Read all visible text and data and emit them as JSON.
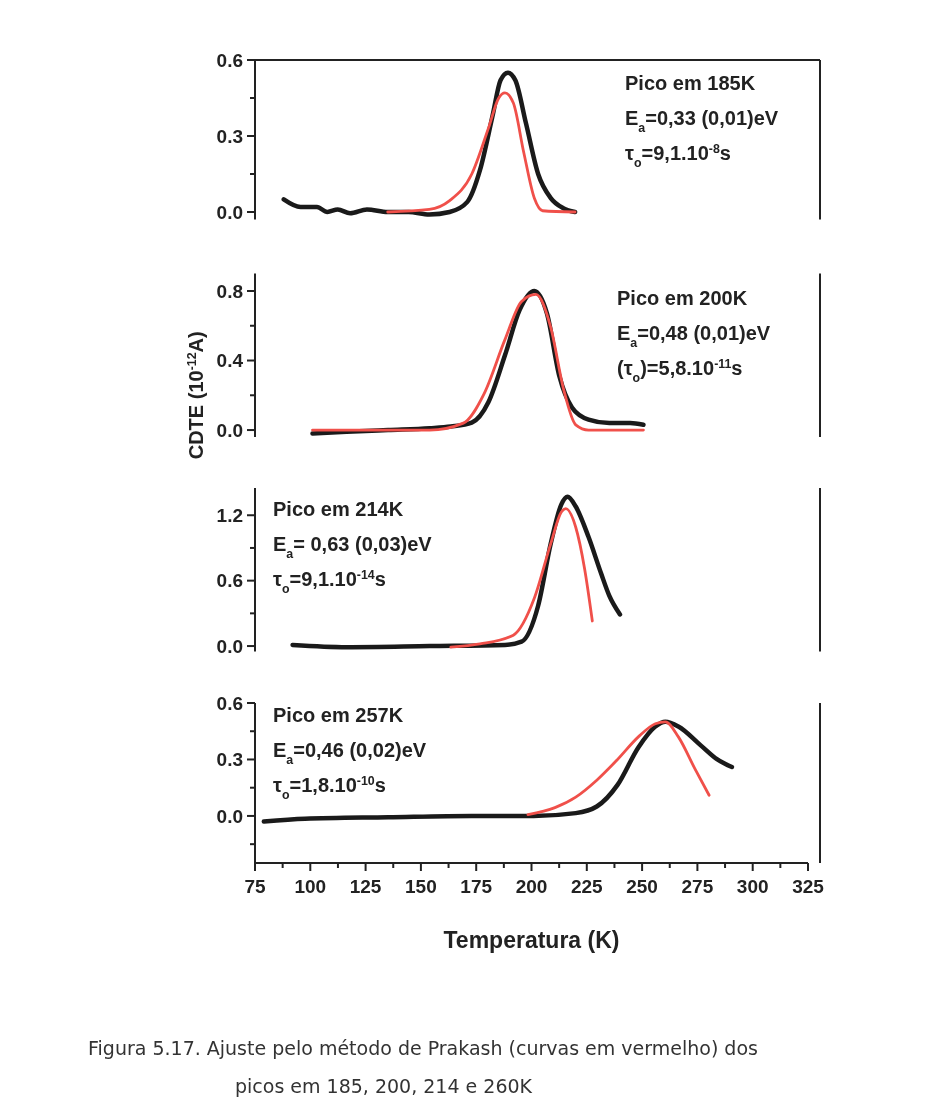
{
  "chart_data": [
    {
      "type": "line",
      "xlim": [
        75,
        325
      ],
      "ylim": [
        -0.03,
        0.6
      ],
      "yticks": [
        {
          "value": 0,
          "label": "0.0"
        },
        {
          "value": 0.15,
          "label": null
        },
        {
          "value": 0.3,
          "label": "0.3"
        },
        {
          "value": 0.45,
          "label": null
        },
        {
          "value": 0.6,
          "label": "0.6"
        }
      ],
      "tick_labels": "y",
      "annotations": [
        "Pico em 185K",
        "E$_{a}$=0,33 (0,01)eV",
        "τ$_{o}$=9,1.10$^{-8}$s"
      ],
      "series": [
        {
          "color": "#1a1a1a",
          "x": [
            88,
            95.6,
            103,
            107.7,
            112.4,
            118,
            125.6,
            135,
            144.4,
            153.8,
            163,
            171,
            176.7,
            182.4,
            186,
            189.3,
            192.7,
            197.5,
            203,
            208.7,
            214.4,
            219.7
          ],
          "values": [
            0.05,
            0.02,
            0.02,
            0.0,
            0.01,
            -0.005,
            0.01,
            0.0,
            0.0,
            -0.01,
            0.0,
            0.04,
            0.165,
            0.38,
            0.52,
            0.55,
            0.52,
            0.35,
            0.15,
            0.055,
            0.015,
            0.0
          ]
        },
        {
          "color": "#f0504a",
          "x": [
            135,
            153.8,
            163,
            173,
            180.5,
            185.2,
            188,
            191.8,
            196.5,
            201.3,
            205,
            219.7
          ],
          "values": [
            0.0,
            0.01,
            0.045,
            0.15,
            0.33,
            0.45,
            0.47,
            0.43,
            0.235,
            0.054,
            0.005,
            0.0
          ]
        }
      ]
    },
    {
      "type": "line",
      "ylabel": "CDTE (10$^{-12}$A)",
      "xlim": [
        75,
        325
      ],
      "ylim": [
        -0.04,
        0.9
      ],
      "yticks": [
        {
          "value": 0,
          "label": "0.0"
        },
        {
          "value": 0.2,
          "label": null
        },
        {
          "value": 0.4,
          "label": "0.4"
        },
        {
          "value": 0.6,
          "label": null
        },
        {
          "value": 0.8,
          "label": "0.8"
        }
      ],
      "tick_labels": "y",
      "annotations": [
        "Pico em 200K",
        "E$_{a}$=0,48 (0,01)eV",
        "(τ$_{o}$)=5,8.10$^{-11}$s"
      ],
      "series": [
        {
          "color": "#1a1a1a",
          "x": [
            101,
            116.4,
            135.2,
            154,
            163.5,
            173,
            180.5,
            188,
            194.6,
            201.3,
            207,
            212.6,
            218.3,
            225.8,
            235.2,
            244.6,
            250.6
          ],
          "values": [
            -0.02,
            -0.01,
            0.0,
            0.01,
            0.02,
            0.043,
            0.16,
            0.43,
            0.69,
            0.8,
            0.67,
            0.31,
            0.13,
            0.06,
            0.04,
            0.04,
            0.03
          ]
        },
        {
          "color": "#f0504a",
          "x": [
            101,
            154,
            169.2,
            178.6,
            188,
            195.5,
            202,
            208.7,
            214.4,
            220,
            225.8,
            250.6
          ],
          "values": [
            0.0,
            0.0,
            0.04,
            0.21,
            0.52,
            0.74,
            0.78,
            0.59,
            0.24,
            0.03,
            0.0,
            0.0
          ]
        }
      ]
    },
    {
      "type": "line",
      "xlim": [
        75,
        325
      ],
      "ylim": [
        -0.05,
        1.45
      ],
      "yticks": [
        {
          "value": 0,
          "label": "0.0"
        },
        {
          "value": 0.3,
          "label": null
        },
        {
          "value": 0.6,
          "label": "0.6"
        },
        {
          "value": 0.9,
          "label": null
        },
        {
          "value": 1.2,
          "label": "1.2"
        }
      ],
      "tick_labels": "y",
      "annotations": [
        "Pico em 214K",
        "E$_{a}$= 0,63 (0,03)eV",
        "τ$_{o}$=9,1.10$^{-14}$s"
      ],
      "series": [
        {
          "color": "#1a1a1a",
          "x": [
            92,
            116.4,
            154,
            188,
            195.5,
            203,
            208.7,
            213.5,
            216.3,
            220,
            225.8,
            231.4,
            235.2,
            240
          ],
          "values": [
            0.01,
            -0.01,
            0.0,
            0.01,
            0.04,
            0.37,
            0.94,
            1.3,
            1.37,
            1.28,
            1.0,
            0.67,
            0.46,
            0.29
          ]
        },
        {
          "color": "#f0504a",
          "x": [
            163.5,
            176.7,
            191.8,
            201.3,
            208.7,
            213.5,
            215.5,
            220,
            224,
            227.5
          ],
          "values": [
            -0.01,
            0.02,
            0.1,
            0.44,
            0.94,
            1.23,
            1.26,
            1.09,
            0.71,
            0.23
          ]
        }
      ]
    },
    {
      "type": "line",
      "xlabel": "Temperatura (K)",
      "xlim": [
        75,
        325
      ],
      "xticks": [
        75,
        {
          "value": 87.5,
          "label": null
        },
        100,
        {
          "value": 112.5,
          "label": null
        },
        125,
        {
          "value": 137.5,
          "label": null
        },
        150,
        {
          "value": 162.5,
          "label": null
        },
        175,
        {
          "value": 187.5,
          "label": null
        },
        200,
        {
          "value": 212.5,
          "label": null
        },
        225,
        {
          "value": 237.5,
          "label": null
        },
        250,
        {
          "value": 262.5,
          "label": null
        },
        275,
        {
          "value": 287.5,
          "label": null
        },
        300,
        {
          "value": 312.5,
          "label": null
        },
        325
      ],
      "ylim": [
        -0.25,
        0.6
      ],
      "yticks": [
        {
          "value": -0.15,
          "label": null
        },
        {
          "value": 0,
          "label": "0.0"
        },
        {
          "value": 0.15,
          "label": null
        },
        {
          "value": 0.3,
          "label": "0.3"
        },
        {
          "value": 0.45,
          "label": null
        },
        {
          "value": 0.6,
          "label": "0.6"
        }
      ],
      "annotations": [
        "Pico em 257K",
        "E$_{a}$=0,46 (0,02)eV",
        "τ$_{o}$=1,8.10$^{-10}$s",
        "Figura 5.17. Ajuste pelo método de Prakash (curvas em vermelho) dos picos em 185, 200, 214 e 260K"
      ],
      "series": [
        {
          "color": "#1a1a1a",
          "x": [
            79,
            97.6,
            135.2,
            172.8,
            201,
            220,
            229.5,
            238.9,
            248.3,
            256,
            260.5,
            266.4,
            276.5,
            284,
            290.6
          ],
          "values": [
            -0.03,
            -0.015,
            -0.007,
            0.0,
            0.0,
            0.015,
            0.05,
            0.165,
            0.364,
            0.475,
            0.5,
            0.475,
            0.375,
            0.3,
            0.26
          ]
        },
        {
          "color": "#f0504a",
          "x": [
            198.4,
            210.6,
            220,
            229.5,
            238.9,
            248.3,
            256,
            260.5,
            266.4,
            273.9,
            280.3
          ],
          "values": [
            0.007,
            0.044,
            0.1,
            0.19,
            0.3,
            0.42,
            0.49,
            0.5,
            0.42,
            0.25,
            0.11
          ]
        }
      ]
    }
  ]
}
